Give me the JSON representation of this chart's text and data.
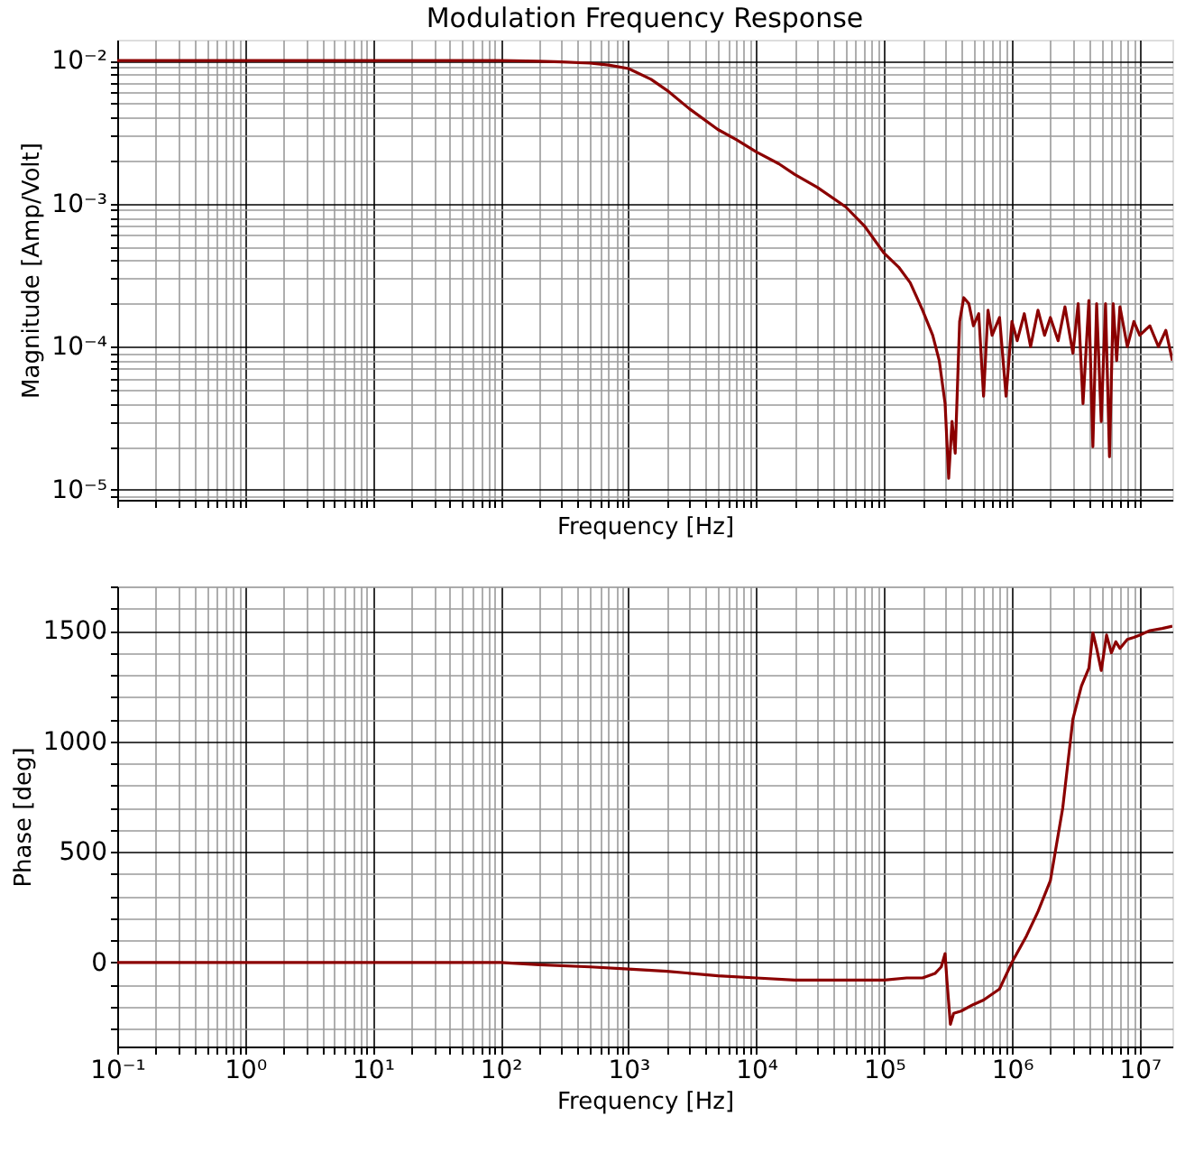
{
  "chart_data": [
    {
      "type": "line",
      "title": "Modulation Frequency Response",
      "xlabel": "Frequency [Hz]",
      "ylabel": "Magnitude [Amp/Volt]",
      "log": "xy",
      "grid": true,
      "tick_labels": "y",
      "xlim": [
        0.1,
        18000000
      ],
      "ylim": [
        8.5e-06,
        0.014
      ],
      "xticks": [
        0.1,
        {
          "value": 0.2,
          "label": null
        },
        {
          "value": 0.3,
          "label": null
        },
        {
          "value": 0.4,
          "label": null
        },
        {
          "value": 0.5,
          "label": null
        },
        {
          "value": 0.6,
          "label": null
        },
        {
          "value": 0.7,
          "label": null
        },
        {
          "value": 0.8,
          "label": null
        },
        {
          "value": 0.9,
          "label": null
        },
        1,
        {
          "value": 2,
          "label": null
        },
        {
          "value": 3,
          "label": null
        },
        {
          "value": 4,
          "label": null
        },
        {
          "value": 5,
          "label": null
        },
        {
          "value": 6,
          "label": null
        },
        {
          "value": 7,
          "label": null
        },
        {
          "value": 8,
          "label": null
        },
        {
          "value": 9,
          "label": null
        },
        10,
        {
          "value": 20,
          "label": null
        },
        {
          "value": 30,
          "label": null
        },
        {
          "value": 40,
          "label": null
        },
        {
          "value": 50,
          "label": null
        },
        {
          "value": 60,
          "label": null
        },
        {
          "value": 70,
          "label": null
        },
        {
          "value": 80,
          "label": null
        },
        {
          "value": 90,
          "label": null
        },
        100,
        {
          "value": 200,
          "label": null
        },
        {
          "value": 300,
          "label": null
        },
        {
          "value": 400,
          "label": null
        },
        {
          "value": 500,
          "label": null
        },
        {
          "value": 600,
          "label": null
        },
        {
          "value": 700,
          "label": null
        },
        {
          "value": 800,
          "label": null
        },
        {
          "value": 900,
          "label": null
        },
        1000,
        {
          "value": 2000,
          "label": null
        },
        {
          "value": 3000,
          "label": null
        },
        {
          "value": 4000,
          "label": null
        },
        {
          "value": 5000,
          "label": null
        },
        {
          "value": 6000,
          "label": null
        },
        {
          "value": 7000,
          "label": null
        },
        {
          "value": 8000,
          "label": null
        },
        {
          "value": 9000,
          "label": null
        },
        10000,
        {
          "value": 20000,
          "label": null
        },
        {
          "value": 30000,
          "label": null
        },
        {
          "value": 40000,
          "label": null
        },
        {
          "value": 50000,
          "label": null
        },
        {
          "value": 60000,
          "label": null
        },
        {
          "value": 70000,
          "label": null
        },
        {
          "value": 80000,
          "label": null
        },
        {
          "value": 90000,
          "label": null
        },
        100000,
        {
          "value": 200000,
          "label": null
        },
        {
          "value": 300000,
          "label": null
        },
        {
          "value": 400000,
          "label": null
        },
        {
          "value": 500000,
          "label": null
        },
        {
          "value": 600000,
          "label": null
        },
        {
          "value": 700000,
          "label": null
        },
        {
          "value": 800000,
          "label": null
        },
        {
          "value": 900000,
          "label": null
        },
        1000000,
        {
          "value": 2000000,
          "label": null
        },
        {
          "value": 3000000,
          "label": null
        },
        {
          "value": 4000000,
          "label": null
        },
        {
          "value": 5000000,
          "label": null
        },
        {
          "value": 6000000,
          "label": null
        },
        {
          "value": 7000000,
          "label": null
        },
        {
          "value": 8000000,
          "label": null
        },
        {
          "value": 9000000,
          "label": null
        },
        10000000
      ],
      "yticks": [
        {
          "value": 9e-06,
          "label": null
        },
        {
          "value": 1e-05,
          "label": "10⁻⁵"
        },
        {
          "value": 2e-05,
          "label": null
        },
        {
          "value": 3e-05,
          "label": null
        },
        {
          "value": 4e-05,
          "label": null
        },
        {
          "value": 5e-05,
          "label": null
        },
        {
          "value": 6e-05,
          "label": null
        },
        {
          "value": 7e-05,
          "label": null
        },
        {
          "value": 8e-05,
          "label": null
        },
        {
          "value": 9e-05,
          "label": null
        },
        {
          "value": 0.0001,
          "label": "10⁻⁴"
        },
        {
          "value": 0.0002,
          "label": null
        },
        {
          "value": 0.0003,
          "label": null
        },
        {
          "value": 0.0004,
          "label": null
        },
        {
          "value": 0.0005,
          "label": null
        },
        {
          "value": 0.0006,
          "label": null
        },
        {
          "value": 0.0007,
          "label": null
        },
        {
          "value": 0.0008,
          "label": null
        },
        {
          "value": 0.0009,
          "label": null
        },
        {
          "value": 0.001,
          "label": "10⁻³"
        },
        {
          "value": 0.002,
          "label": null
        },
        {
          "value": 0.003,
          "label": null
        },
        {
          "value": 0.004,
          "label": null
        },
        {
          "value": 0.005,
          "label": null
        },
        {
          "value": 0.006,
          "label": null
        },
        {
          "value": 0.007,
          "label": null
        },
        {
          "value": 0.008,
          "label": null
        },
        {
          "value": 0.009,
          "label": null
        },
        {
          "value": 0.01,
          "label": "10⁻²"
        }
      ],
      "x": [
        0.1,
        0.3,
        1,
        3,
        10,
        30,
        100,
        200,
        300,
        500,
        700,
        1000,
        1500,
        2000,
        3000,
        5000,
        7000,
        10000,
        15000,
        20000,
        30000,
        50000,
        70000,
        100000,
        130000,
        160000,
        200000,
        240000,
        270000,
        300000,
        320000,
        340000,
        360000,
        390000,
        420000,
        460000,
        500000,
        550000,
        600000,
        650000,
        700000,
        800000,
        900000,
        1000000,
        1100000,
        1250000,
        1400000,
        1600000,
        1800000,
        2000000,
        2300000,
        2600000,
        3000000,
        3300000,
        3600000,
        4000000,
        4300000,
        4600000,
        5000000,
        5400000,
        5800000,
        6200000,
        6600000,
        7000000,
        8000000,
        9000000,
        10000000,
        12000000,
        14000000,
        16000000,
        18000000
      ],
      "series": [
        {
          "color": "#8b0000",
          "values": [
            0.01,
            0.01,
            0.01,
            0.01,
            0.01,
            0.01,
            0.01,
            0.0099,
            0.0098,
            0.0096,
            0.0093,
            0.0088,
            0.0074,
            0.0062,
            0.0046,
            0.0033,
            0.0028,
            0.0023,
            0.0019,
            0.0016,
            0.0013,
            0.00095,
            0.0007,
            0.00045,
            0.00036,
            0.00028,
            0.00018,
            0.00012,
            8e-05,
            4e-05,
            1.2e-05,
            3e-05,
            1.8e-05,
            0.00015,
            0.00022,
            0.0002,
            0.00014,
            0.00017,
            4.5e-05,
            0.00018,
            0.00012,
            0.00016,
            4.5e-05,
            0.00015,
            0.00011,
            0.00017,
            0.0001,
            0.00018,
            0.00012,
            0.00016,
            0.00011,
            0.00019,
            9e-05,
            0.0002,
            4e-05,
            0.00021,
            2e-05,
            0.0002,
            3e-05,
            0.0002,
            1.7e-05,
            0.0002,
            8e-05,
            0.00019,
            0.0001,
            0.00015,
            0.00012,
            0.00014,
            0.0001,
            0.00013,
            8e-05
          ]
        }
      ]
    },
    {
      "type": "line",
      "xlabel": "Frequency [Hz]",
      "ylabel": "Phase [deg]",
      "log": "x",
      "grid": true,
      "xlim": [
        0.1,
        18000000
      ],
      "ylim": [
        -380,
        1700
      ],
      "xticks": [
        {
          "value": 0.1,
          "label": "10⁻¹"
        },
        {
          "value": 0.2,
          "label": null
        },
        {
          "value": 0.3,
          "label": null
        },
        {
          "value": 0.4,
          "label": null
        },
        {
          "value": 0.5,
          "label": null
        },
        {
          "value": 0.6,
          "label": null
        },
        {
          "value": 0.7,
          "label": null
        },
        {
          "value": 0.8,
          "label": null
        },
        {
          "value": 0.9,
          "label": null
        },
        {
          "value": 1,
          "label": "10⁰"
        },
        {
          "value": 2,
          "label": null
        },
        {
          "value": 3,
          "label": null
        },
        {
          "value": 4,
          "label": null
        },
        {
          "value": 5,
          "label": null
        },
        {
          "value": 6,
          "label": null
        },
        {
          "value": 7,
          "label": null
        },
        {
          "value": 8,
          "label": null
        },
        {
          "value": 9,
          "label": null
        },
        {
          "value": 10,
          "label": "10¹"
        },
        {
          "value": 20,
          "label": null
        },
        {
          "value": 30,
          "label": null
        },
        {
          "value": 40,
          "label": null
        },
        {
          "value": 50,
          "label": null
        },
        {
          "value": 60,
          "label": null
        },
        {
          "value": 70,
          "label": null
        },
        {
          "value": 80,
          "label": null
        },
        {
          "value": 90,
          "label": null
        },
        {
          "value": 100,
          "label": "10²"
        },
        {
          "value": 200,
          "label": null
        },
        {
          "value": 300,
          "label": null
        },
        {
          "value": 400,
          "label": null
        },
        {
          "value": 500,
          "label": null
        },
        {
          "value": 600,
          "label": null
        },
        {
          "value": 700,
          "label": null
        },
        {
          "value": 800,
          "label": null
        },
        {
          "value": 900,
          "label": null
        },
        {
          "value": 1000,
          "label": "10³"
        },
        {
          "value": 2000,
          "label": null
        },
        {
          "value": 3000,
          "label": null
        },
        {
          "value": 4000,
          "label": null
        },
        {
          "value": 5000,
          "label": null
        },
        {
          "value": 6000,
          "label": null
        },
        {
          "value": 7000,
          "label": null
        },
        {
          "value": 8000,
          "label": null
        },
        {
          "value": 9000,
          "label": null
        },
        {
          "value": 10000,
          "label": "10⁴"
        },
        {
          "value": 20000,
          "label": null
        },
        {
          "value": 30000,
          "label": null
        },
        {
          "value": 40000,
          "label": null
        },
        {
          "value": 50000,
          "label": null
        },
        {
          "value": 60000,
          "label": null
        },
        {
          "value": 70000,
          "label": null
        },
        {
          "value": 80000,
          "label": null
        },
        {
          "value": 90000,
          "label": null
        },
        {
          "value": 100000,
          "label": "10⁵"
        },
        {
          "value": 200000,
          "label": null
        },
        {
          "value": 300000,
          "label": null
        },
        {
          "value": 400000,
          "label": null
        },
        {
          "value": 500000,
          "label": null
        },
        {
          "value": 600000,
          "label": null
        },
        {
          "value": 700000,
          "label": null
        },
        {
          "value": 800000,
          "label": null
        },
        {
          "value": 900000,
          "label": null
        },
        {
          "value": 1000000,
          "label": "10⁶"
        },
        {
          "value": 2000000,
          "label": null
        },
        {
          "value": 3000000,
          "label": null
        },
        {
          "value": 4000000,
          "label": null
        },
        {
          "value": 5000000,
          "label": null
        },
        {
          "value": 6000000,
          "label": null
        },
        {
          "value": 7000000,
          "label": null
        },
        {
          "value": 8000000,
          "label": null
        },
        {
          "value": 9000000,
          "label": null
        },
        {
          "value": 10000000,
          "label": "10⁷"
        }
      ],
      "yticks": [
        {
          "value": -300,
          "label": null
        },
        {
          "value": -200,
          "label": null
        },
        {
          "value": -100,
          "label": null
        },
        0,
        {
          "value": 100,
          "label": null
        },
        {
          "value": 200,
          "label": null
        },
        {
          "value": 300,
          "label": null
        },
        {
          "value": 400,
          "label": null
        },
        500,
        {
          "value": 600,
          "label": null
        },
        {
          "value": 700,
          "label": null
        },
        {
          "value": 800,
          "label": null
        },
        {
          "value": 900,
          "label": null
        },
        1000,
        {
          "value": 1100,
          "label": null
        },
        {
          "value": 1200,
          "label": null
        },
        {
          "value": 1300,
          "label": null
        },
        {
          "value": 1400,
          "label": null
        },
        1500,
        {
          "value": 1600,
          "label": null
        },
        {
          "value": 1700,
          "label": null
        }
      ],
      "x": [
        0.1,
        1,
        10,
        100,
        200,
        500,
        1000,
        2000,
        5000,
        10000,
        20000,
        50000,
        100000,
        150000,
        200000,
        250000,
        280000,
        300000,
        310000,
        330000,
        350000,
        400000,
        500000,
        600000,
        800000,
        1000000,
        1300000,
        1600000,
        2000000,
        2500000,
        3000000,
        3500000,
        4000000,
        4300000,
        4600000,
        5000000,
        5500000,
        6000000,
        6500000,
        7000000,
        8000000,
        9000000,
        10000000,
        12000000,
        15000000,
        18000000
      ],
      "series": [
        {
          "color": "#8b0000",
          "values": [
            0,
            0,
            0,
            0,
            -10,
            -20,
            -30,
            -40,
            -60,
            -70,
            -80,
            -80,
            -80,
            -70,
            -70,
            -50,
            -20,
            40,
            -80,
            -280,
            -230,
            -220,
            -190,
            -170,
            -120,
            0,
            120,
            230,
            370,
            700,
            1100,
            1250,
            1330,
            1490,
            1420,
            1320,
            1480,
            1400,
            1450,
            1420,
            1460,
            1470,
            1480,
            1500,
            1510,
            1520
          ]
        }
      ]
    }
  ]
}
